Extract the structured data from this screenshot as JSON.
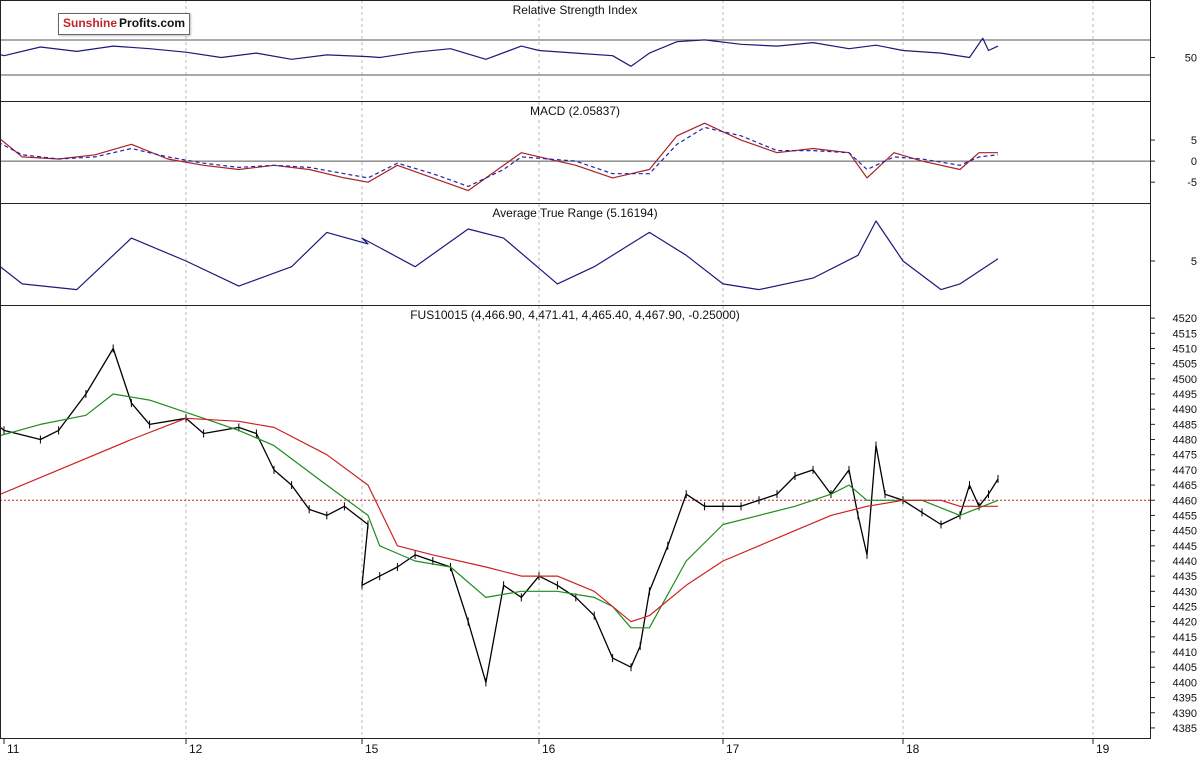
{
  "logo": {
    "part1": "Sunshine",
    "part2": "Profits.com"
  },
  "x_axis": {
    "ticks": [
      "11",
      "12",
      "15",
      "16",
      "17",
      "18",
      "19"
    ]
  },
  "colors": {
    "background": "#ffffff",
    "price_bars": "#000000",
    "ma_short": "#1e8c1e",
    "ma_long": "#cc2222",
    "macd_line": "#aa2222",
    "macd_signal": "#2222aa",
    "indicator": "#1a1a7a",
    "reference_line": "#cc2222",
    "grid": "#bbbbbb"
  },
  "chart_data": [
    {
      "type": "line",
      "title": "Relative Strength Index",
      "y_ticks": [
        "50"
      ],
      "reference_levels": [
        70,
        30
      ],
      "series": [
        {
          "x": [
            10.9,
            11.0,
            11.2,
            11.4,
            11.6,
            11.8,
            12.0,
            12.2,
            12.4,
            12.6,
            12.8,
            13.0,
            15.1,
            15.3,
            15.5,
            15.7,
            15.9,
            16.0,
            16.2,
            16.4,
            16.5,
            16.6,
            16.75,
            16.9,
            17.1,
            17.3,
            17.5,
            17.7,
            17.85,
            18.0,
            18.2,
            18.35,
            18.42,
            18.45,
            18.5
          ],
          "y": [
            58,
            52,
            62,
            57,
            63,
            60,
            56,
            50,
            55,
            48,
            53,
            51,
            50,
            56,
            60,
            48,
            63,
            58,
            55,
            52,
            40,
            55,
            68,
            70,
            65,
            63,
            67,
            60,
            64,
            58,
            55,
            50,
            72,
            58,
            63
          ]
        }
      ]
    },
    {
      "type": "line",
      "title": "MACD (2.05837)",
      "y_ticks": [
        "5",
        "0",
        "-5"
      ],
      "ylim": [
        -9,
        10
      ],
      "series": [
        {
          "x": [
            10.9,
            11.1,
            11.3,
            11.5,
            11.7,
            11.9,
            12.1,
            12.3,
            12.5,
            12.7,
            12.9,
            13.0,
            15.2,
            15.4,
            15.6,
            15.8,
            15.9,
            16.2,
            16.4,
            16.6,
            16.75,
            16.9,
            17.1,
            17.3,
            17.5,
            17.7,
            17.8,
            17.95,
            18.1,
            18.3,
            18.4,
            18.5
          ],
          "y": [
            8,
            1,
            0.5,
            1.5,
            4,
            0.5,
            -1,
            -2,
            -1,
            -2,
            -4,
            -5,
            -1,
            -4,
            -7,
            -1,
            2,
            -1,
            -4,
            -2,
            6,
            9,
            5,
            2,
            3,
            2,
            -4,
            2,
            0,
            -2,
            2,
            2
          ]
        },
        {
          "x": [
            10.9,
            11.1,
            11.3,
            11.5,
            11.7,
            11.9,
            12.1,
            12.3,
            12.5,
            12.7,
            12.9,
            13.0,
            15.2,
            15.4,
            15.6,
            15.8,
            15.9,
            16.2,
            16.4,
            16.6,
            16.75,
            16.9,
            17.1,
            17.3,
            17.5,
            17.7,
            17.8,
            17.95,
            18.1,
            18.3,
            18.4,
            18.5
          ],
          "y": [
            6,
            1.5,
            0.5,
            1,
            3,
            1,
            -0.5,
            -1.5,
            -1,
            -1.5,
            -3,
            -4,
            -0.5,
            -3,
            -6,
            -2,
            1,
            0,
            -3,
            -3,
            4,
            8,
            6,
            2.5,
            2.5,
            2,
            -2,
            1,
            0.5,
            -1,
            1,
            1.5
          ]
        }
      ]
    },
    {
      "type": "line",
      "title": "Average True Range (5.16194)",
      "y_ticks": [
        "5"
      ],
      "ylim": [
        1.5,
        8.5
      ],
      "series": [
        {
          "x": [
            10.9,
            11.1,
            11.4,
            11.7,
            12.0,
            12.3,
            12.6,
            12.8,
            13.0,
            15.0,
            15.3,
            15.6,
            15.8,
            16.1,
            16.3,
            16.6,
            16.8,
            17.0,
            17.2,
            17.5,
            17.75,
            17.85,
            18.0,
            18.2,
            18.3,
            18.5
          ],
          "y": [
            5.5,
            3,
            2.5,
            7,
            5,
            2.8,
            4.5,
            7.5,
            6.5,
            7,
            4.5,
            7.8,
            7,
            3,
            4.5,
            7.5,
            5.5,
            3,
            2.5,
            3.5,
            5.5,
            8.5,
            5,
            2.5,
            3,
            5.2
          ]
        }
      ]
    },
    {
      "type": "line",
      "title": "FUS10015 (4,466.90, 4,471.41, 4,465.40, 4,467.90, -0.25000)",
      "y_ticks": [
        "4520",
        "4515",
        "4510",
        "4505",
        "4500",
        "4495",
        "4490",
        "4485",
        "4480",
        "4475",
        "4470",
        "4465",
        "4460",
        "4455",
        "4450",
        "4445",
        "4440",
        "4435",
        "4430",
        "4425",
        "4420",
        "4415",
        "4410",
        "4405",
        "4400",
        "4395",
        "4390",
        "4385"
      ],
      "ylim": [
        4383,
        4523
      ],
      "reference_level": 4460,
      "series": [
        {
          "x": [
            10.9,
            11.0,
            11.2,
            11.3,
            11.45,
            11.6,
            11.7,
            11.8,
            12.0,
            12.1,
            12.3,
            12.4,
            12.5,
            12.6,
            12.7,
            12.8,
            12.9,
            13.0,
            15.0,
            15.1,
            15.2,
            15.3,
            15.4,
            15.5,
            15.6,
            15.7,
            15.8,
            15.9,
            16.0,
            16.1,
            16.2,
            16.3,
            16.4,
            16.5,
            16.55,
            16.6,
            16.7,
            16.8,
            16.9,
            17.0,
            17.1,
            17.2,
            17.3,
            17.4,
            17.5,
            17.6,
            17.7,
            17.75,
            17.8,
            17.85,
            17.9,
            18.0,
            18.1,
            18.2,
            18.3,
            18.35,
            18.4,
            18.45,
            18.5
          ],
          "y": [
            4488,
            4483,
            4480,
            4483,
            4495,
            4510,
            4492,
            4485,
            4487,
            4482,
            4484,
            4482,
            4470,
            4465,
            4457,
            4455,
            4458,
            4452,
            4432,
            4435,
            4438,
            4442,
            4440,
            4438,
            4420,
            4400,
            4432,
            4428,
            4435,
            4432,
            4428,
            4422,
            4408,
            4405,
            4412,
            4430,
            4445,
            4462,
            4458,
            4458,
            4458,
            4460,
            4462,
            4468,
            4470,
            4462,
            4470,
            4455,
            4442,
            4478,
            4462,
            4460,
            4456,
            4452,
            4455,
            4465,
            4458,
            4462,
            4467
          ]
        },
        {
          "x": [
            10.9,
            11.2,
            11.45,
            11.6,
            11.8,
            12.1,
            12.3,
            12.5,
            12.8,
            13.0,
            15.1,
            15.3,
            15.5,
            15.7,
            15.9,
            16.1,
            16.3,
            16.4,
            16.5,
            16.6,
            16.8,
            17.0,
            17.2,
            17.4,
            17.6,
            17.7,
            17.8,
            17.9,
            18.1,
            18.3,
            18.5
          ],
          "y": [
            4480,
            4485,
            4488,
            4495,
            4493,
            4487,
            4483,
            4478,
            4465,
            4455,
            4445,
            4440,
            4438,
            4428,
            4430,
            4430,
            4428,
            4425,
            4418,
            4418,
            4440,
            4452,
            4455,
            4458,
            4462,
            4465,
            4460,
            4460,
            4460,
            4455,
            4460
          ]
        },
        {
          "x": [
            10.9,
            11.3,
            11.7,
            12.0,
            12.3,
            12.5,
            12.8,
            13.0,
            15.2,
            15.4,
            15.7,
            15.9,
            16.1,
            16.3,
            16.5,
            16.6,
            16.8,
            17.0,
            17.2,
            17.4,
            17.6,
            17.8,
            18.0,
            18.2,
            18.3,
            18.5
          ],
          "y": [
            4460,
            4470,
            4480,
            4487,
            4486,
            4484,
            4475,
            4465,
            4445,
            4442,
            4438,
            4435,
            4435,
            4430,
            4420,
            4422,
            4432,
            4440,
            4445,
            4450,
            4455,
            4458,
            4460,
            4460,
            4458,
            4458
          ]
        }
      ]
    }
  ]
}
